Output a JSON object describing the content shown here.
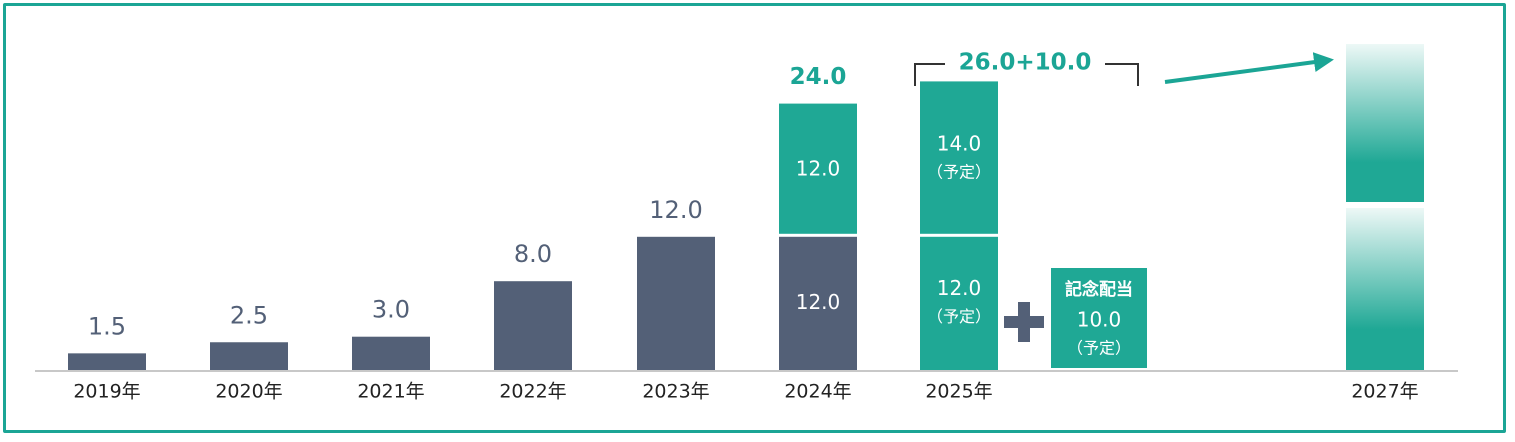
{
  "colors": {
    "frame": "#1ba595",
    "dark_bar": "#536077",
    "teal_bar": "#1fa895",
    "teal_label": "#1ba595",
    "axis": "#c8c8c8",
    "tick_text": "#222222",
    "value_text": "#536077",
    "plus": "#536077"
  },
  "chart_data": {
    "type": "bar",
    "categories": [
      "2019年",
      "2020年",
      "2021年",
      "2022年",
      "2023年",
      "2024年",
      "2025年",
      "2027年"
    ],
    "series": [
      {
        "values": [
          1.5,
          2.5,
          3.0,
          8.0,
          12.0,
          12.0,
          12.0,
          null
        ]
      },
      {
        "values": [
          null,
          null,
          null,
          null,
          null,
          12.0,
          14.0,
          null
        ]
      }
    ],
    "value_labels": [
      "1.5",
      "2.5",
      "3.0",
      "8.0",
      "12.0"
    ],
    "stack_labels": {
      "y2024_base": "12.0",
      "y2024_add": "12.0",
      "y2024_total": "24.0",
      "y2025_base": "12.0",
      "y2025_base_note": "（予定）",
      "y2025_add": "14.0",
      "y2025_add_note": "（予定）",
      "y2025_total": "26.0+10.0"
    },
    "special_dividend": {
      "title": "記念配当",
      "value": 10.0,
      "value_label": "10.0",
      "note": "（予定）"
    },
    "future_bar": {
      "category": "2027年",
      "style": "gradient",
      "trend_arrow": true
    },
    "xlabel": "",
    "ylabel": "",
    "ylim": [
      0,
      28
    ],
    "grid": false,
    "legend": "none"
  }
}
